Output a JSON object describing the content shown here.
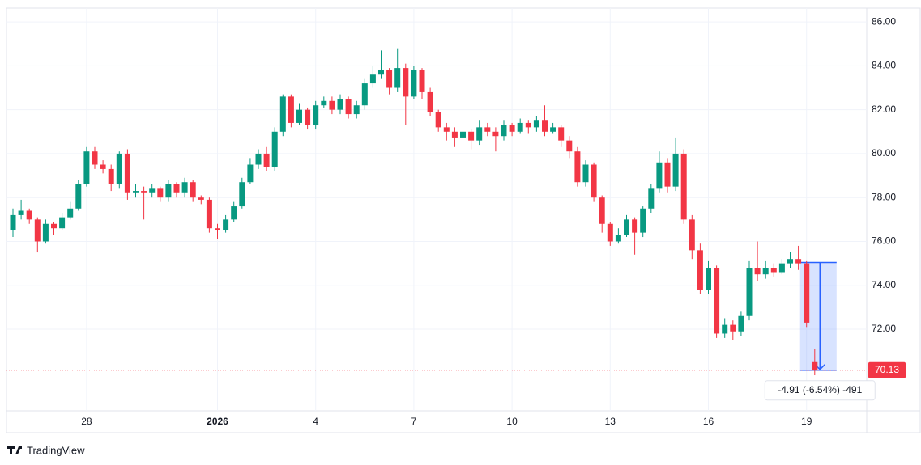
{
  "chart_data": {
    "type": "candlestick",
    "categories": [
      null,
      null,
      null,
      null,
      null,
      null,
      null,
      null,
      null,
      "28",
      null,
      null,
      null,
      null,
      null,
      null,
      null,
      null,
      null,
      null,
      null,
      null,
      null,
      null,
      null,
      "2026",
      null,
      null,
      null,
      null,
      null,
      null,
      null,
      null,
      null,
      null,
      null,
      "4",
      null,
      null,
      null,
      null,
      null,
      null,
      null,
      null,
      null,
      null,
      null,
      "7",
      null,
      null,
      null,
      null,
      null,
      null,
      null,
      null,
      null,
      null,
      null,
      "10",
      null,
      null,
      null,
      null,
      null,
      null,
      null,
      null,
      null,
      null,
      null,
      "13",
      null,
      null,
      null,
      null,
      null,
      null,
      null,
      null,
      null,
      null,
      null,
      "16",
      null,
      null,
      null,
      null,
      null,
      null,
      null,
      null,
      null,
      null,
      null,
      "19",
      null
    ],
    "open": [
      76.5,
      77.2,
      77.4,
      77.0,
      76.0,
      76.8,
      76.6,
      77.1,
      77.5,
      78.6,
      80.1,
      79.5,
      79.3,
      78.6,
      80.0,
      78.2,
      78.3,
      78.2,
      78.4,
      78.0,
      78.6,
      78.2,
      78.7,
      78.0,
      77.9,
      76.6,
      76.5,
      77.0,
      77.6,
      78.7,
      79.5,
      80.0,
      79.4,
      81.0,
      82.6,
      81.4,
      82.0,
      81.3,
      82.2,
      82.4,
      82.0,
      82.5,
      81.8,
      82.2,
      83.2,
      83.6,
      83.8,
      83.0,
      83.9,
      82.6,
      83.8,
      82.8,
      81.9,
      81.2,
      81.0,
      80.7,
      81.0,
      80.6,
      81.2,
      81.0,
      80.8,
      81.3,
      81.0,
      81.4,
      81.2,
      81.5,
      81.0,
      81.2,
      80.6,
      80.1,
      78.7,
      79.5,
      78.0,
      76.8,
      76.0,
      76.3,
      77.0,
      76.4,
      77.5,
      78.4,
      79.6,
      78.5,
      80.0,
      77.0,
      75.6,
      73.8,
      74.8,
      71.8,
      72.2,
      71.9,
      72.6,
      74.8,
      74.5,
      74.8,
      74.6,
      75.0,
      75.2,
      75.0,
      70.5
    ],
    "high": [
      77.5,
      77.9,
      77.5,
      77.1,
      77.0,
      76.9,
      77.3,
      77.8,
      78.8,
      80.3,
      80.3,
      79.7,
      79.5,
      80.1,
      80.2,
      78.6,
      78.5,
      78.6,
      78.5,
      78.8,
      78.7,
      78.9,
      78.8,
      78.1,
      78.0,
      76.8,
      77.2,
      77.8,
      78.9,
      79.8,
      80.2,
      80.3,
      81.2,
      82.7,
      82.7,
      82.3,
      82.1,
      82.4,
      82.6,
      82.6,
      82.7,
      82.6,
      82.4,
      83.4,
      84.0,
      84.7,
      83.9,
      84.8,
      84.1,
      84.0,
      83.9,
      83.0,
      82.0,
      81.4,
      81.2,
      81.2,
      81.1,
      81.5,
      81.4,
      81.2,
      81.5,
      81.4,
      81.6,
      81.5,
      81.7,
      82.2,
      81.4,
      81.3,
      80.8,
      80.3,
      79.7,
      79.6,
      78.1,
      76.9,
      76.6,
      77.2,
      77.1,
      77.6,
      78.6,
      80.1,
      79.8,
      80.7,
      80.2,
      77.2,
      75.9,
      75.1,
      74.9,
      72.5,
      72.4,
      72.8,
      75.1,
      76.0,
      75.1,
      75.0,
      75.2,
      75.5,
      75.8,
      75.1,
      71.1
    ],
    "low": [
      76.2,
      77.0,
      76.8,
      75.5,
      75.9,
      76.3,
      76.5,
      77.0,
      77.4,
      78.5,
      79.3,
      79.1,
      78.3,
      78.4,
      77.9,
      78.0,
      77.0,
      78.0,
      77.8,
      77.8,
      78.0,
      78.0,
      77.8,
      77.7,
      76.4,
      76.1,
      76.4,
      76.9,
      77.5,
      78.6,
      79.3,
      79.2,
      79.2,
      80.8,
      81.2,
      81.3,
      81.1,
      81.1,
      82.1,
      81.8,
      81.8,
      81.6,
      81.6,
      82.0,
      83.0,
      83.4,
      82.7,
      82.8,
      81.3,
      82.5,
      82.5,
      81.7,
      81.0,
      80.6,
      80.3,
      80.5,
      80.2,
      80.4,
      80.8,
      80.1,
      80.6,
      80.8,
      80.9,
      80.9,
      81.0,
      80.8,
      80.9,
      80.3,
      79.8,
      78.5,
      78.5,
      77.8,
      76.4,
      75.8,
      75.9,
      76.2,
      75.4,
      76.2,
      77.3,
      78.2,
      78.2,
      78.3,
      76.8,
      75.2,
      73.6,
      73.6,
      71.6,
      71.6,
      71.5,
      71.7,
      72.4,
      74.2,
      74.3,
      74.4,
      74.5,
      74.8,
      74.7,
      72.1,
      69.9
    ],
    "close": [
      77.2,
      77.4,
      77.0,
      76.0,
      76.8,
      76.6,
      77.1,
      77.5,
      78.6,
      80.1,
      79.5,
      79.3,
      78.6,
      80.0,
      78.2,
      78.3,
      78.2,
      78.4,
      78.0,
      78.6,
      78.2,
      78.7,
      78.0,
      77.9,
      76.6,
      76.5,
      77.0,
      77.6,
      78.7,
      79.5,
      80.0,
      79.4,
      81.0,
      82.6,
      81.4,
      82.0,
      81.3,
      82.2,
      82.4,
      82.0,
      82.5,
      81.8,
      82.2,
      83.2,
      83.6,
      83.8,
      83.0,
      83.9,
      82.6,
      83.8,
      82.8,
      81.9,
      81.2,
      81.0,
      80.7,
      81.0,
      80.6,
      81.2,
      81.0,
      80.8,
      81.3,
      81.0,
      81.4,
      81.2,
      81.5,
      81.0,
      81.2,
      80.6,
      80.1,
      78.7,
      79.5,
      78.0,
      76.8,
      76.0,
      76.3,
      77.0,
      76.4,
      77.5,
      78.4,
      79.6,
      78.5,
      80.0,
      77.0,
      75.6,
      73.8,
      74.8,
      71.8,
      72.2,
      71.9,
      72.6,
      74.8,
      74.5,
      74.8,
      74.6,
      75.0,
      75.2,
      75.0,
      72.3,
      70.13
    ],
    "up_color": "#089981",
    "down_color": "#f23645",
    "ylim": [
      68.28,
      86.63
    ],
    "yticks": [
      {
        "value": 72,
        "label": "72.00"
      },
      {
        "value": 74,
        "label": "74.00"
      },
      {
        "value": 76,
        "label": "76.00"
      },
      {
        "value": 78,
        "label": "78.00"
      },
      {
        "value": 80,
        "label": "80.00"
      },
      {
        "value": 82,
        "label": "82.00"
      },
      {
        "value": 84,
        "label": "84.00"
      },
      {
        "value": 86,
        "label": "86.00"
      }
    ],
    "grid": true,
    "last_price": 70.13,
    "measure": {
      "top": 75.04,
      "bottom": 70.13,
      "label": "-4.91 (-6.54%) -491"
    },
    "brand": "TradingView"
  }
}
